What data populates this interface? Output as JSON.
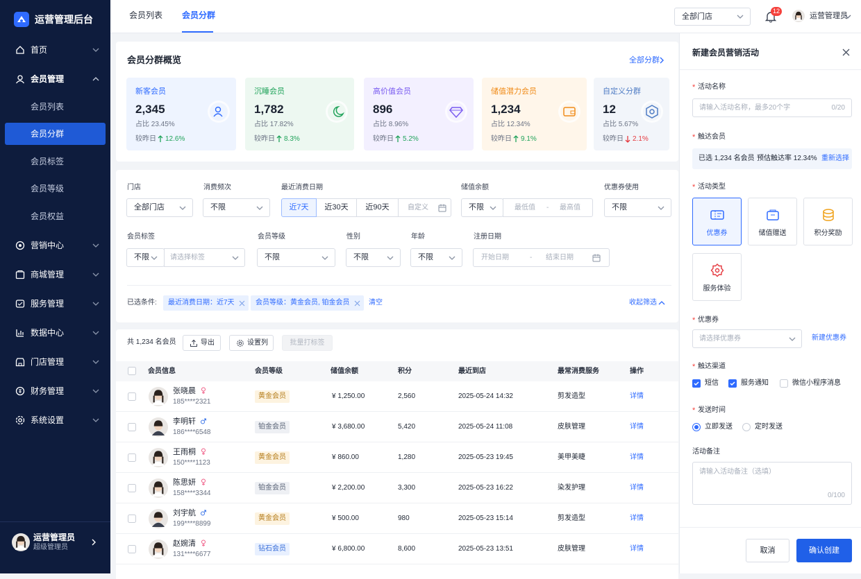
{
  "sidebar": {
    "brand": "运营管理后台",
    "menu": [
      {
        "label": "首页"
      },
      {
        "label": "会员管理",
        "expanded": true,
        "children": [
          {
            "label": "会员列表"
          },
          {
            "label": "会员分群",
            "active": true
          },
          {
            "label": "会员标签"
          },
          {
            "label": "会员等级"
          },
          {
            "label": "会员权益"
          }
        ]
      },
      {
        "label": "营销中心"
      },
      {
        "label": "商城管理"
      },
      {
        "label": "服务管理"
      },
      {
        "label": "数据中心"
      },
      {
        "label": "门店管理"
      },
      {
        "label": "财务管理"
      },
      {
        "label": "系统设置"
      }
    ],
    "user": {
      "name": "运营管理员",
      "role": "超级管理员"
    }
  },
  "topbar": {
    "tabs": [
      {
        "label": "会员列表"
      },
      {
        "label": "会员分群",
        "active": true
      }
    ],
    "store_select": "全部门店",
    "notification_count": 12,
    "user": "运营管理员"
  },
  "overview": {
    "title": "会员分群概览",
    "link": "全部分群",
    "cards": [
      {
        "name": "新客会员",
        "value": "2,345",
        "share": "占比 23.45%",
        "compare_label": "较昨日",
        "change": "12.6%",
        "trend": "up",
        "color": "#2f6bff",
        "bg": "#eef4ff"
      },
      {
        "name": "沉睡会员",
        "value": "1,782",
        "share": "占比 17.82%",
        "compare_label": "较昨日",
        "change": "8.3%",
        "trend": "up",
        "color": "#21a35b",
        "bg": "#edf8f1"
      },
      {
        "name": "高价值会员",
        "value": "896",
        "share": "占比 8.96%",
        "compare_label": "较昨日",
        "change": "5.2%",
        "trend": "up",
        "color": "#7a5cf0",
        "bg": "#f3f0ff"
      },
      {
        "name": "储值潜力会员",
        "value": "1,234",
        "share": "占比 12.34%",
        "compare_label": "较昨日",
        "change": "9.1%",
        "trend": "up",
        "color": "#f08c1a",
        "bg": "#fff6ea"
      },
      {
        "name": "自定义分群",
        "value": "12",
        "share": "占比 5.67%",
        "compare_label": "较昨日",
        "change": "2.1%",
        "trend": "down",
        "color": "#4f7cc4",
        "bg": "#f2f5fa"
      }
    ]
  },
  "filters": {
    "store": {
      "label": "门店",
      "value": "全部门店"
    },
    "frequency": {
      "label": "消费频次",
      "value": "不限"
    },
    "recent_date": {
      "label": "最近消费日期",
      "options": [
        "近7天",
        "近30天",
        "近90天"
      ],
      "custom": "自定义"
    },
    "balance": {
      "label": "储值余额",
      "value": "不限",
      "min": "最低值",
      "separator": "-",
      "max": "最高值"
    },
    "coupon": {
      "label": "优惠券使用",
      "value": "不限"
    },
    "tags": {
      "label": "会员标签",
      "value": "不限",
      "placeholder": "请选择标签"
    },
    "level": {
      "label": "会员等级",
      "value": "不限"
    },
    "gender": {
      "label": "性别",
      "value": "不限"
    },
    "age": {
      "label": "年龄",
      "value": "不限"
    },
    "register_date": {
      "label": "注册日期",
      "start": "开始日期",
      "separator": "-",
      "end": "结束日期"
    },
    "selected_label": "已选条件:",
    "selected": [
      "最近消费日期：近7天",
      "会员等级：黄金会员, 铂金会员"
    ],
    "clear": "清空",
    "collapse": "收起筛选"
  },
  "table": {
    "total": "共 1,234 名会员",
    "export": "导出",
    "columns_setting": "设置列",
    "batch_tag": "批量打标签",
    "columns": [
      "会员信息",
      "会员等级",
      "储值余额",
      "积分",
      "最近到店",
      "最常消费服务",
      "操作"
    ],
    "rows": [
      {
        "name": "张晓晨",
        "gender": "female",
        "phone": "185****2321",
        "level": "黄金会员",
        "level_style": "gold",
        "balance": "¥ 1,250.00",
        "points": "2,560",
        "last_visit": "2025-05-24 14:32",
        "service": "剪发造型",
        "action": "详情"
      },
      {
        "name": "李明轩",
        "gender": "male",
        "phone": "186****6548",
        "level": "铂金会员",
        "level_style": "platinum",
        "balance": "¥ 3,680.00",
        "points": "5,420",
        "last_visit": "2025-05-24 11:08",
        "service": "皮肤管理",
        "action": "详情"
      },
      {
        "name": "王雨桐",
        "gender": "female",
        "phone": "150****1123",
        "level": "黄金会员",
        "level_style": "gold",
        "balance": "¥ 860.00",
        "points": "1,280",
        "last_visit": "2025-05-23 19:45",
        "service": "美甲美睫",
        "action": "详情"
      },
      {
        "name": "陈思妍",
        "gender": "female",
        "phone": "158****3344",
        "level": "铂金会员",
        "level_style": "platinum",
        "balance": "¥ 2,200.00",
        "points": "3,300",
        "last_visit": "2025-05-23 16:22",
        "service": "染发护理",
        "action": "详情"
      },
      {
        "name": "刘宇航",
        "gender": "male",
        "phone": "199****8899",
        "level": "黄金会员",
        "level_style": "gold",
        "balance": "¥ 500.00",
        "points": "980",
        "last_visit": "2025-05-23 15:14",
        "service": "剪发造型",
        "action": "详情"
      },
      {
        "name": "赵婉清",
        "gender": "female",
        "phone": "131****6677",
        "level": "钻石会员",
        "level_style": "diamond",
        "balance": "¥ 6,800.00",
        "points": "8,600",
        "last_visit": "2025-05-23 13:51",
        "service": "皮肤管理",
        "action": "详情"
      }
    ]
  },
  "panel": {
    "title": "新建会员营销活动",
    "required_mark": "*",
    "name": {
      "label": "活动名称",
      "required": true,
      "placeholder": "请输入活动名称，最多20个字",
      "counter": "0/20"
    },
    "audience": {
      "label": "触达会员",
      "required": true,
      "selected": "已选 1,234 名会员",
      "rate": "预估触达率 12.34%",
      "reselect": "重新选择"
    },
    "type": {
      "label": "活动类型",
      "required": true,
      "options": [
        {
          "label": "优惠券",
          "selected": true
        },
        {
          "label": "储值赠送"
        },
        {
          "label": "积分奖励"
        },
        {
          "label": "服务体验"
        }
      ]
    },
    "coupon": {
      "label": "优惠券",
      "required": true,
      "placeholder": "请选择优惠券",
      "create": "新建优惠券"
    },
    "channels": {
      "label": "触达渠道",
      "required": true,
      "options": [
        {
          "label": "短信",
          "checked": true
        },
        {
          "label": "服务通知",
          "checked": true
        },
        {
          "label": "微信小程序消息",
          "checked": false
        }
      ]
    },
    "send_time": {
      "label": "发送时间",
      "required": true,
      "options": [
        {
          "label": "立即发送",
          "checked": true
        },
        {
          "label": "定时发送",
          "checked": false
        }
      ]
    },
    "note": {
      "label": "活动备注",
      "placeholder": "请输入活动备注（选填）",
      "counter": "0/100"
    },
    "cancel": "取消",
    "confirm": "确认创建"
  }
}
